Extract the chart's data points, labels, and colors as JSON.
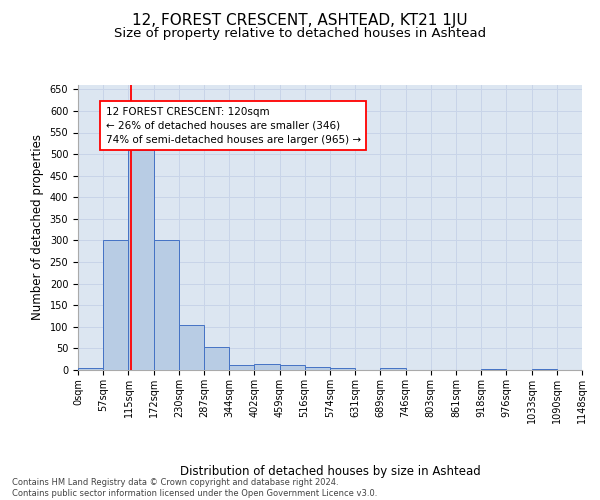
{
  "title": "12, FOREST CRESCENT, ASHTEAD, KT21 1JU",
  "subtitle": "Size of property relative to detached houses in Ashtead",
  "xlabel": "Distribution of detached houses by size in Ashtead",
  "ylabel": "Number of detached properties",
  "bin_edges": [
    0,
    57,
    115,
    172,
    230,
    287,
    344,
    402,
    459,
    516,
    574,
    631,
    689,
    746,
    803,
    861,
    918,
    976,
    1033,
    1090,
    1148
  ],
  "bar_heights": [
    5,
    300,
    510,
    300,
    105,
    53,
    12,
    13,
    12,
    8,
    5,
    1,
    5,
    0,
    0,
    0,
    3,
    0,
    3,
    0
  ],
  "bar_color": "#b8cce4",
  "bar_edgecolor": "#4472c4",
  "grid_color": "#c8d4e8",
  "plot_bg_color": "#dce6f1",
  "red_line_x": 120,
  "annotation_box_text": "12 FOREST CRESCENT: 120sqm\n← 26% of detached houses are smaller (346)\n74% of semi-detached houses are larger (965) →",
  "ylim": [
    0,
    660
  ],
  "yticks": [
    0,
    50,
    100,
    150,
    200,
    250,
    300,
    350,
    400,
    450,
    500,
    550,
    600,
    650
  ],
  "footer_text": "Contains HM Land Registry data © Crown copyright and database right 2024.\nContains public sector information licensed under the Open Government Licence v3.0.",
  "title_fontsize": 11,
  "subtitle_fontsize": 9.5,
  "tick_label_fontsize": 7,
  "ylabel_fontsize": 8.5,
  "xlabel_fontsize": 8.5,
  "annotation_fontsize": 7.5,
  "footer_fontsize": 6
}
